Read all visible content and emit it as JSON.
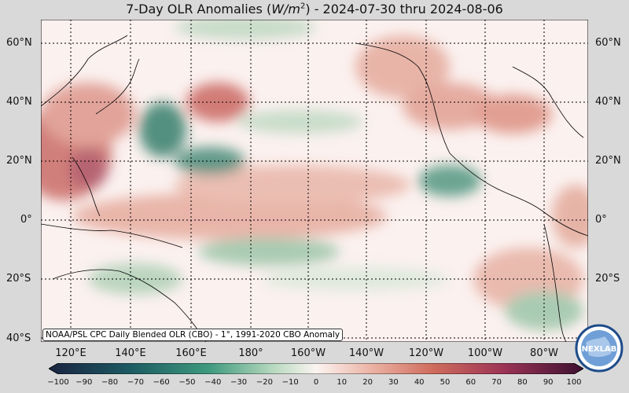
{
  "title": {
    "prefix": "7-Day OLR Anomalies (",
    "unit_base": "W/m",
    "unit_exp": "2",
    "suffix": ") - 2024-07-30 thru 2024-08-06"
  },
  "lat_labels": [
    "60°N",
    "40°N",
    "20°N",
    "0°",
    "20°S",
    "40°S"
  ],
  "lon_labels": [
    "120°E",
    "140°E",
    "160°E",
    "180°",
    "160°W",
    "140°W",
    "120°W",
    "100°W",
    "80°W"
  ],
  "credit": "NOAA/PSL CPC Daily Blended OLR (CBO) - 1°, 1991-2020 CBO Anomaly",
  "colorbar_ticks": [
    "−100",
    "−90",
    "−80",
    "−70",
    "−60",
    "−50",
    "−40",
    "−30",
    "−20",
    "−10",
    "0",
    "10",
    "20",
    "30",
    "40",
    "50",
    "60",
    "70",
    "80",
    "90",
    "100"
  ],
  "logo_text": "NEXLAB",
  "colors": {
    "negative": "#1f6f5a",
    "positive": "#b03a3a",
    "neutral": "#fbf1ef",
    "land_line": "#000000"
  }
}
